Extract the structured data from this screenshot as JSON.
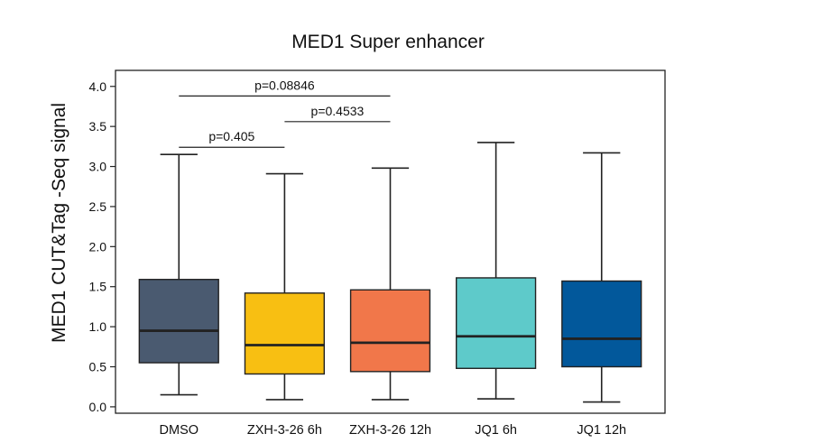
{
  "chart_data": {
    "type": "box",
    "title": "MED1 Super enhancer",
    "xlabel": "",
    "ylabel": "MED1 CUT&Tag -Seq signal",
    "ylim": [
      -0.08,
      4.2
    ],
    "yticks": [
      "0.0",
      "0.5",
      "1.0",
      "1.5",
      "2.0",
      "2.5",
      "3.0",
      "3.5",
      "4.0"
    ],
    "grid": false,
    "categories": [
      "DMSO",
      "ZXH-3-26 6h",
      "ZXH-3-26 12h",
      "JQ1 6h",
      "JQ1 12h"
    ],
    "boxes": [
      {
        "whisker_low": 0.15,
        "q1": 0.55,
        "median": 0.95,
        "q3": 1.59,
        "whisker_high": 3.15,
        "color": "#4A5A70"
      },
      {
        "whisker_low": 0.09,
        "q1": 0.41,
        "median": 0.77,
        "q3": 1.42,
        "whisker_high": 2.91,
        "color": "#F8BF12"
      },
      {
        "whisker_low": 0.09,
        "q1": 0.44,
        "median": 0.8,
        "q3": 1.46,
        "whisker_high": 2.98,
        "color": "#F1774A"
      },
      {
        "whisker_low": 0.1,
        "q1": 0.48,
        "median": 0.88,
        "q3": 1.61,
        "whisker_high": 3.3,
        "color": "#5ECACA"
      },
      {
        "whisker_low": 0.06,
        "q1": 0.5,
        "median": 0.85,
        "q3": 1.57,
        "whisker_high": 3.17,
        "color": "#02589B"
      }
    ],
    "annotations": [
      {
        "from": 0,
        "to": 1,
        "y": 3.24,
        "text": "p=0.405"
      },
      {
        "from": 0,
        "to": 2,
        "y": 3.88,
        "text": "p=0.08846"
      },
      {
        "from": 1,
        "to": 2,
        "y": 3.56,
        "text": "p=0.4533"
      }
    ]
  }
}
